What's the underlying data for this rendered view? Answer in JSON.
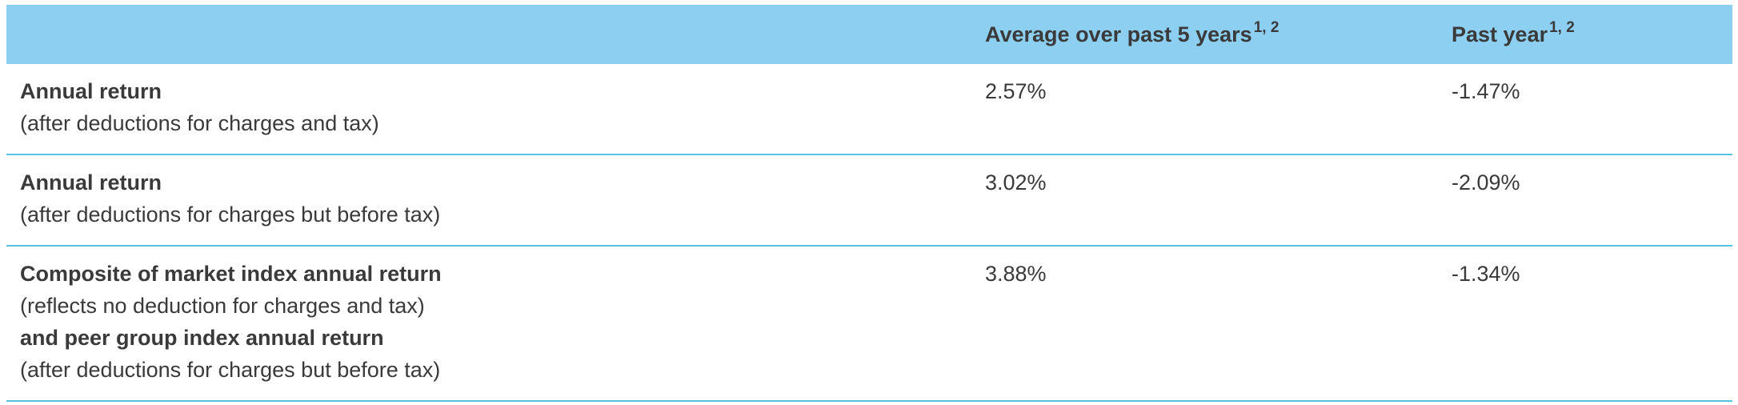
{
  "table": {
    "columns": [
      {
        "label": "Average over past 5 years",
        "superscript": "1, 2"
      },
      {
        "label": "Past year",
        "superscript": "1, 2"
      }
    ],
    "rows": [
      {
        "label": [
          {
            "text": "Annual return",
            "bold": true
          },
          {
            "text": "(after deductions for charges and tax)",
            "bold": false
          }
        ],
        "values": [
          "2.57%",
          "-1.47%"
        ]
      },
      {
        "label": [
          {
            "text": "Annual return",
            "bold": true
          },
          {
            "text": "(after deductions for charges but before tax)",
            "bold": false
          }
        ],
        "values": [
          "3.02%",
          "-2.09%"
        ]
      },
      {
        "label": [
          {
            "text": "Composite of market index annual return",
            "bold": true
          },
          {
            "text": "(reflects no deduction for charges and tax)",
            "bold": false
          },
          {
            "text": "and peer group index annual return",
            "bold": true
          },
          {
            "text": "(after deductions for charges but before tax)",
            "bold": false
          }
        ],
        "values": [
          "3.88%",
          "-1.34%"
        ]
      }
    ]
  }
}
